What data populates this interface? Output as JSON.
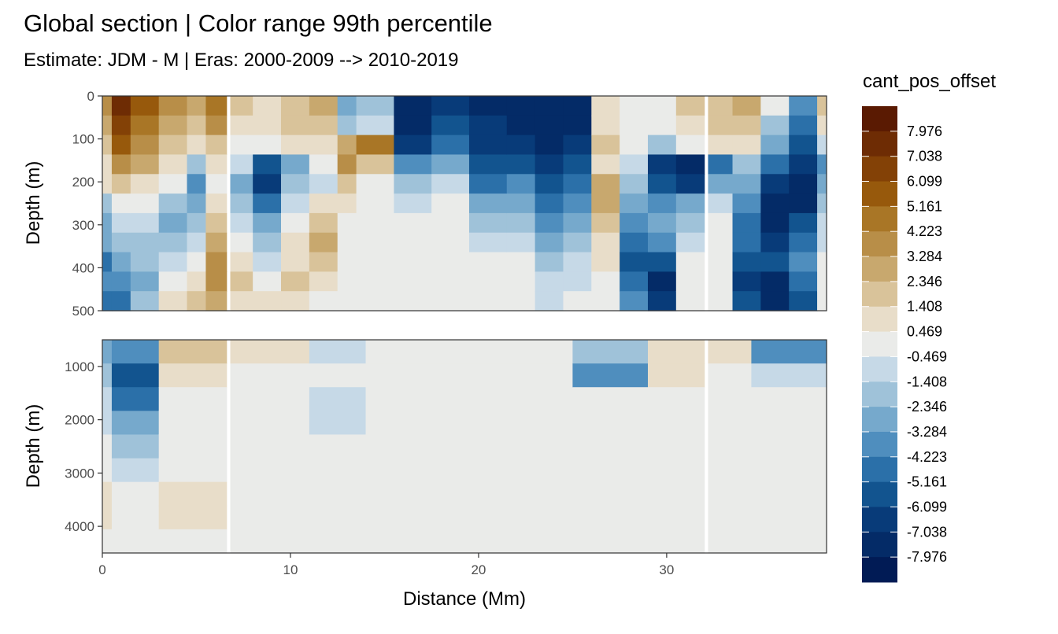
{
  "chart_data": {
    "type": "heatmap",
    "title": "Global section | Color range 99th percentile",
    "subtitle": "Estimate: JDM - M | Eras: 2000-2009 --> 2010-2019",
    "xlabel": "Distance (Mm)",
    "xlim": [
      0,
      38.5
    ],
    "x_ticks": [
      0,
      10,
      20,
      30
    ],
    "legend": {
      "title": "cant_pos_offset",
      "placement": "right",
      "labels": [
        "7.976",
        "7.038",
        "6.099",
        "5.161",
        "4.223",
        "3.284",
        "2.346",
        "1.408",
        "0.469",
        "-0.469",
        "-1.408",
        "-2.346",
        "-3.284",
        "-4.223",
        "-5.161",
        "-6.099",
        "-7.038",
        "-7.976"
      ],
      "colors": [
        "#5a1a02",
        "#6e2c04",
        "#834106",
        "#97590c",
        "#a97626",
        "#b88e48",
        "#c8a86e",
        "#d9c39a",
        "#e8ddc9",
        "#eaebe9",
        "#c6d9e7",
        "#9fc2d9",
        "#76a9cc",
        "#4f8ebe",
        "#2b70a9",
        "#12548f",
        "#083b79",
        "#042b67",
        "#011b55"
      ]
    },
    "panels": [
      {
        "name": "upper",
        "ylabel": "Depth (m)",
        "ylim": [
          500,
          0
        ],
        "y_ticks": [
          0,
          100,
          200,
          300,
          400,
          500
        ],
        "columns": [
          {
            "x": [
              0,
              0.5
            ],
            "levels": [
              4,
              3,
              2,
              1,
              1,
              -2,
              -3,
              -3,
              -5,
              -4,
              -5
            ]
          },
          {
            "x": [
              0.5,
              1.5
            ],
            "levels": [
              8,
              7,
              6,
              4,
              2,
              0,
              -1,
              -2,
              -3,
              -4,
              -5
            ]
          },
          {
            "x": [
              1.5,
              3
            ],
            "levels": [
              6,
              5,
              4,
              3,
              1,
              0,
              -1,
              -2,
              -2,
              -3,
              -2
            ]
          },
          {
            "x": [
              3,
              4.5
            ],
            "levels": [
              4,
              3,
              2,
              1,
              0,
              -2,
              -3,
              -2,
              -1,
              0,
              1
            ]
          },
          {
            "x": [
              4.5,
              5.5
            ],
            "levels": [
              3,
              2,
              1,
              -2,
              -4,
              -3,
              -2,
              -1,
              0,
              1,
              2
            ]
          },
          {
            "x": [
              5.5,
              6.6
            ],
            "levels": [
              5,
              4,
              2,
              1,
              0,
              1,
              2,
              3,
              4,
              4,
              3
            ]
          },
          {
            "x": [
              6.8,
              8
            ],
            "levels": [
              2,
              1,
              0,
              -1,
              -3,
              -2,
              -1,
              0,
              1,
              2,
              1
            ]
          },
          {
            "x": [
              8,
              9.5
            ],
            "levels": [
              1,
              1,
              0,
              -6,
              -7,
              -5,
              -3,
              -2,
              -1,
              0,
              1
            ]
          },
          {
            "x": [
              9.5,
              11
            ],
            "levels": [
              2,
              2,
              1,
              -3,
              -2,
              -1,
              0,
              1,
              1,
              2,
              1
            ]
          },
          {
            "x": [
              11,
              12.5
            ],
            "levels": [
              3,
              2,
              1,
              0,
              -1,
              1,
              2,
              3,
              2,
              1,
              0
            ]
          },
          {
            "x": [
              12.5,
              13.5
            ],
            "levels": [
              -3,
              -2,
              3,
              4,
              2,
              1,
              0,
              0,
              0,
              0,
              0
            ]
          },
          {
            "x": [
              13.5,
              15.5
            ],
            "levels": [
              -2,
              -1,
              5,
              2,
              0,
              0,
              0,
              0,
              0,
              0,
              0
            ]
          },
          {
            "x": [
              15.5,
              17.5
            ],
            "levels": [
              -8,
              -8,
              -7,
              -4,
              -2,
              -1,
              0,
              0,
              0,
              0,
              0
            ]
          },
          {
            "x": [
              17.5,
              19.5
            ],
            "levels": [
              -7,
              -6,
              -5,
              -3,
              -1,
              0,
              0,
              0,
              0,
              0,
              0
            ]
          },
          {
            "x": [
              19.5,
              21.5
            ],
            "levels": [
              -8,
              -7,
              -7,
              -6,
              -5,
              -3,
              -2,
              -1,
              0,
              0,
              0
            ]
          },
          {
            "x": [
              21.5,
              23
            ],
            "levels": [
              -8,
              -8,
              -7,
              -6,
              -4,
              -3,
              -2,
              -1,
              0,
              0,
              0
            ]
          },
          {
            "x": [
              23,
              24.5
            ],
            "levels": [
              -8,
              -8,
              -8,
              -7,
              -6,
              -5,
              -4,
              -3,
              -2,
              -1,
              -1
            ]
          },
          {
            "x": [
              24.5,
              26
            ],
            "levels": [
              -8,
              -8,
              -7,
              -6,
              -5,
              -4,
              -3,
              -2,
              -1,
              -1,
              0
            ]
          },
          {
            "x": [
              26,
              27.5
            ],
            "levels": [
              1,
              1,
              2,
              1,
              3,
              3,
              2,
              1,
              1,
              0,
              0
            ]
          },
          {
            "x": [
              27.5,
              29
            ],
            "levels": [
              0,
              0,
              0,
              -1,
              -2,
              -3,
              -4,
              -5,
              -6,
              -5,
              -4
            ]
          },
          {
            "x": [
              29,
              30.5
            ],
            "levels": [
              0,
              0,
              -2,
              -7,
              -6,
              -4,
              -3,
              -4,
              -6,
              -8,
              -7
            ]
          },
          {
            "x": [
              30.5,
              32
            ],
            "levels": [
              2,
              1,
              0,
              -8,
              -7,
              -3,
              -2,
              -1,
              0,
              0,
              0
            ]
          },
          {
            "x": [
              32.2,
              33.5
            ],
            "levels": [
              2,
              2,
              1,
              -5,
              -3,
              -1,
              0,
              0,
              0,
              0,
              0
            ]
          },
          {
            "x": [
              33.5,
              35
            ],
            "levels": [
              3,
              2,
              1,
              -2,
              -3,
              -4,
              -5,
              -5,
              -6,
              -7,
              -6
            ]
          },
          {
            "x": [
              35,
              36.5
            ],
            "levels": [
              0,
              -2,
              -3,
              -5,
              -7,
              -8,
              -8,
              -7,
              -6,
              -8,
              -8
            ]
          },
          {
            "x": [
              36.5,
              38
            ],
            "levels": [
              -4,
              -5,
              -6,
              -7,
              -8,
              -8,
              -6,
              -5,
              -4,
              -5,
              -6
            ]
          },
          {
            "x": [
              38,
              38.5
            ],
            "levels": [
              2,
              1,
              -1,
              -4,
              -3,
              -2,
              -1,
              -1,
              0,
              0,
              0
            ]
          }
        ]
      },
      {
        "name": "lower",
        "ylabel": "Depth (m)",
        "ylim": [
          4500,
          500
        ],
        "y_ticks": [
          1000,
          2000,
          3000,
          4000
        ],
        "columns": [
          {
            "x": [
              0,
              0.5
            ],
            "levels": [
              -3,
              -2,
              -1,
              -1,
              0,
              0,
              1,
              1,
              0
            ]
          },
          {
            "x": [
              0.5,
              3
            ],
            "levels": [
              -4,
              -6,
              -5,
              -3,
              -2,
              -1,
              0,
              0,
              0
            ]
          },
          {
            "x": [
              3,
              6.6
            ],
            "levels": [
              2,
              1,
              0,
              0,
              0,
              0,
              1,
              1,
              0
            ]
          },
          {
            "x": [
              6.8,
              11
            ],
            "levels": [
              1,
              0,
              0,
              0,
              0,
              0,
              0,
              0,
              0
            ]
          },
          {
            "x": [
              11,
              14
            ],
            "levels": [
              -1,
              0,
              -1,
              -1,
              0,
              0,
              0,
              0,
              0
            ]
          },
          {
            "x": [
              14,
              25
            ],
            "levels": [
              0,
              0,
              0,
              0,
              0,
              0,
              0,
              0,
              0
            ]
          },
          {
            "x": [
              25,
              29
            ],
            "levels": [
              -2,
              -4,
              0,
              0,
              0,
              0,
              0,
              0,
              0
            ]
          },
          {
            "x": [
              29,
              32
            ],
            "levels": [
              1,
              1,
              0,
              0,
              0,
              0,
              0,
              0,
              0
            ]
          },
          {
            "x": [
              32.2,
              34.5
            ],
            "levels": [
              1,
              0,
              0,
              0,
              0,
              0,
              0,
              0,
              0
            ]
          },
          {
            "x": [
              34.5,
              38.5
            ],
            "levels": [
              -4,
              -1,
              0,
              0,
              0,
              0,
              0,
              0,
              0
            ]
          }
        ]
      }
    ]
  }
}
